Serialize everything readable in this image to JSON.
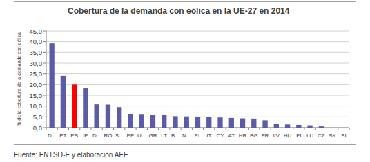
{
  "chart_data": {
    "type": "bar",
    "title": "Cobertura de la demanda con eólica en la UE-27 en 2014",
    "y_label": "% de la cobertura de la demanda con eólica",
    "source": "Fuente: ENTSO-E y elaboración AEE",
    "categories": [
      "D...",
      "PT",
      "ES",
      "IE",
      "D...",
      "RO",
      "S...",
      "EE",
      "U...",
      "GR",
      "LT",
      "B...",
      "N...",
      "PL",
      "IT",
      "CY",
      "AT",
      "HR",
      "BG",
      "FR",
      "LV",
      "HU",
      "FI",
      "LU",
      "CZ",
      "SK",
      "SI"
    ],
    "values": [
      39.2,
      24.3,
      20.0,
      18.5,
      10.8,
      10.7,
      9.5,
      6.4,
      6.3,
      6.0,
      5.8,
      5.3,
      5.2,
      5.0,
      4.9,
      4.7,
      4.5,
      4.3,
      4.2,
      3.4,
      1.6,
      1.5,
      1.3,
      1.1,
      0.6,
      0.0,
      0.0
    ],
    "colors": [
      "#5b5ba8",
      "#5b5ba8",
      "#ff0000",
      "#5b5ba8",
      "#5b5ba8",
      "#5b5ba8",
      "#5b5ba8",
      "#5b5ba8",
      "#5b5ba8",
      "#5b5ba8",
      "#5b5ba8",
      "#5b5ba8",
      "#5b5ba8",
      "#5b5ba8",
      "#5b5ba8",
      "#5b5ba8",
      "#5b5ba8",
      "#5b5ba8",
      "#5b5ba8",
      "#5b5ba8",
      "#5b5ba8",
      "#5b5ba8",
      "#5b5ba8",
      "#5b5ba8",
      "#5b5ba8",
      "#5b5ba8",
      "#5b5ba8"
    ],
    "ylim": [
      0,
      45
    ],
    "yticks": [
      {
        "value": 0,
        "label": "0,0"
      },
      {
        "value": 5,
        "label": "5,0"
      },
      {
        "value": 10,
        "label": "10,0"
      },
      {
        "value": 15,
        "label": "15,0"
      },
      {
        "value": 20,
        "label": "20,0"
      },
      {
        "value": 25,
        "label": "25,0"
      },
      {
        "value": 30,
        "label": "30,0"
      },
      {
        "value": 35,
        "label": "35,0"
      },
      {
        "value": 40,
        "label": "40,0"
      },
      {
        "value": 45,
        "label": "45,0"
      }
    ],
    "grid": true
  }
}
